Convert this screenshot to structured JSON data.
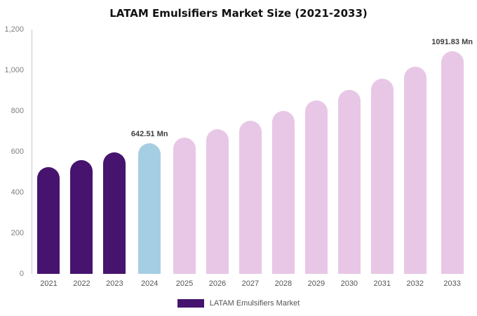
{
  "chart_data": {
    "type": "bar",
    "title": "LATAM Emulsifiers Market Size (2021-2033)",
    "categories": [
      "2021",
      "2022",
      "2023",
      "2024",
      "2025",
      "2026",
      "2027",
      "2028",
      "2029",
      "2030",
      "2031",
      "2032",
      "2033"
    ],
    "values": [
      524,
      560,
      598,
      642.51,
      670,
      712,
      753,
      800,
      851,
      903,
      957,
      1016,
      1091.83
    ],
    "bar_groups": [
      "historical",
      "historical",
      "historical",
      "current",
      "forecast",
      "forecast",
      "forecast",
      "forecast",
      "forecast",
      "forecast",
      "forecast",
      "forecast",
      "forecast"
    ],
    "colors": {
      "historical": "#46146e",
      "current": "#a6cee3",
      "forecast": "#e8c7e6"
    },
    "annotations": [
      {
        "index": 3,
        "text": "642.51 Mn"
      },
      {
        "index": 12,
        "text": "1091.83 Mn"
      }
    ],
    "xlabel": "",
    "ylabel": "",
    "ylim": [
      0,
      1200
    ],
    "yticks": [
      0,
      200,
      400,
      600,
      800,
      1000,
      1200
    ],
    "ytick_labels": [
      "0",
      "200",
      "400",
      "600",
      "800",
      "1,000",
      "1,200"
    ],
    "grid": false,
    "legend_position": "bottom"
  },
  "legend": {
    "label": "LATAM Emulsifiers Market",
    "swatch_color": "#46146e"
  }
}
